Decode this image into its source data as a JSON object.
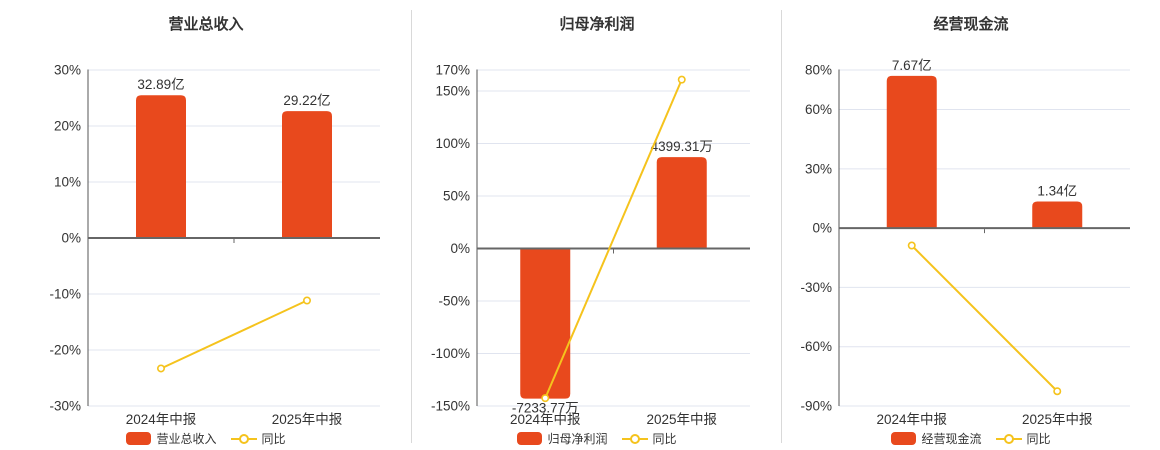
{
  "colors": {
    "bar": "#e8491d",
    "line": "#f5c31d",
    "marker_fill": "#ffffff",
    "grid_line": "#e0e4ef",
    "axis_line": "#555555",
    "zero_line": "#666666",
    "divider": "#d9d9d9",
    "text": "#333333",
    "background": "#ffffff"
  },
  "chart_data": [
    {
      "type": "bar",
      "title": "营业总收入",
      "categories": [
        "2024年中报",
        "2025年中报"
      ],
      "bar_series": {
        "name": "营业总收入",
        "unit": "亿",
        "values": [
          32.89,
          29.22
        ],
        "value_labels": [
          "32.89亿",
          "29.22亿"
        ],
        "plot_pct": [
          25.5,
          22.66
        ]
      },
      "line_series": {
        "name": "同比",
        "unit": "%",
        "values_pct": [
          -23.3,
          -11.16
        ]
      },
      "y_axis": {
        "unit": "%",
        "ticks": [
          30,
          20,
          10,
          0,
          -10,
          -20,
          -30
        ],
        "min": -30,
        "max": 30,
        "grid": true
      },
      "legend_position": "bottom"
    },
    {
      "type": "bar",
      "title": "归母净利润",
      "categories": [
        "2024年中报",
        "2025年中报"
      ],
      "bar_series": {
        "name": "归母净利润",
        "unit": "万",
        "values": [
          -7233.77,
          4399.31
        ],
        "value_labels": [
          "-7233.77万",
          "4399.31万"
        ],
        "plot_pct": [
          -143,
          87
        ]
      },
      "line_series": {
        "name": "同比",
        "unit": "%",
        "values_pct": [
          -142.5,
          160.82
        ]
      },
      "y_axis": {
        "unit": "%",
        "ticks": [
          170,
          150,
          100,
          50,
          0,
          -50,
          -100,
          -150
        ],
        "min": -150,
        "max": 170,
        "grid": true
      },
      "legend_position": "bottom"
    },
    {
      "type": "bar",
      "title": "经营现金流",
      "categories": [
        "2024年中报",
        "2025年中报"
      ],
      "bar_series": {
        "name": "经营现金流",
        "unit": "亿",
        "values": [
          7.67,
          1.34
        ],
        "value_labels": [
          "7.67亿",
          "1.34亿"
        ],
        "plot_pct": [
          77,
          13.45
        ]
      },
      "line_series": {
        "name": "同比",
        "unit": "%",
        "values_pct": [
          -8.8,
          -82.53
        ]
      },
      "y_axis": {
        "unit": "%",
        "ticks": [
          80,
          60,
          30,
          0,
          -30,
          -60,
          -90
        ],
        "min": -90,
        "max": 80,
        "grid": true
      },
      "legend_position": "bottom"
    }
  ]
}
